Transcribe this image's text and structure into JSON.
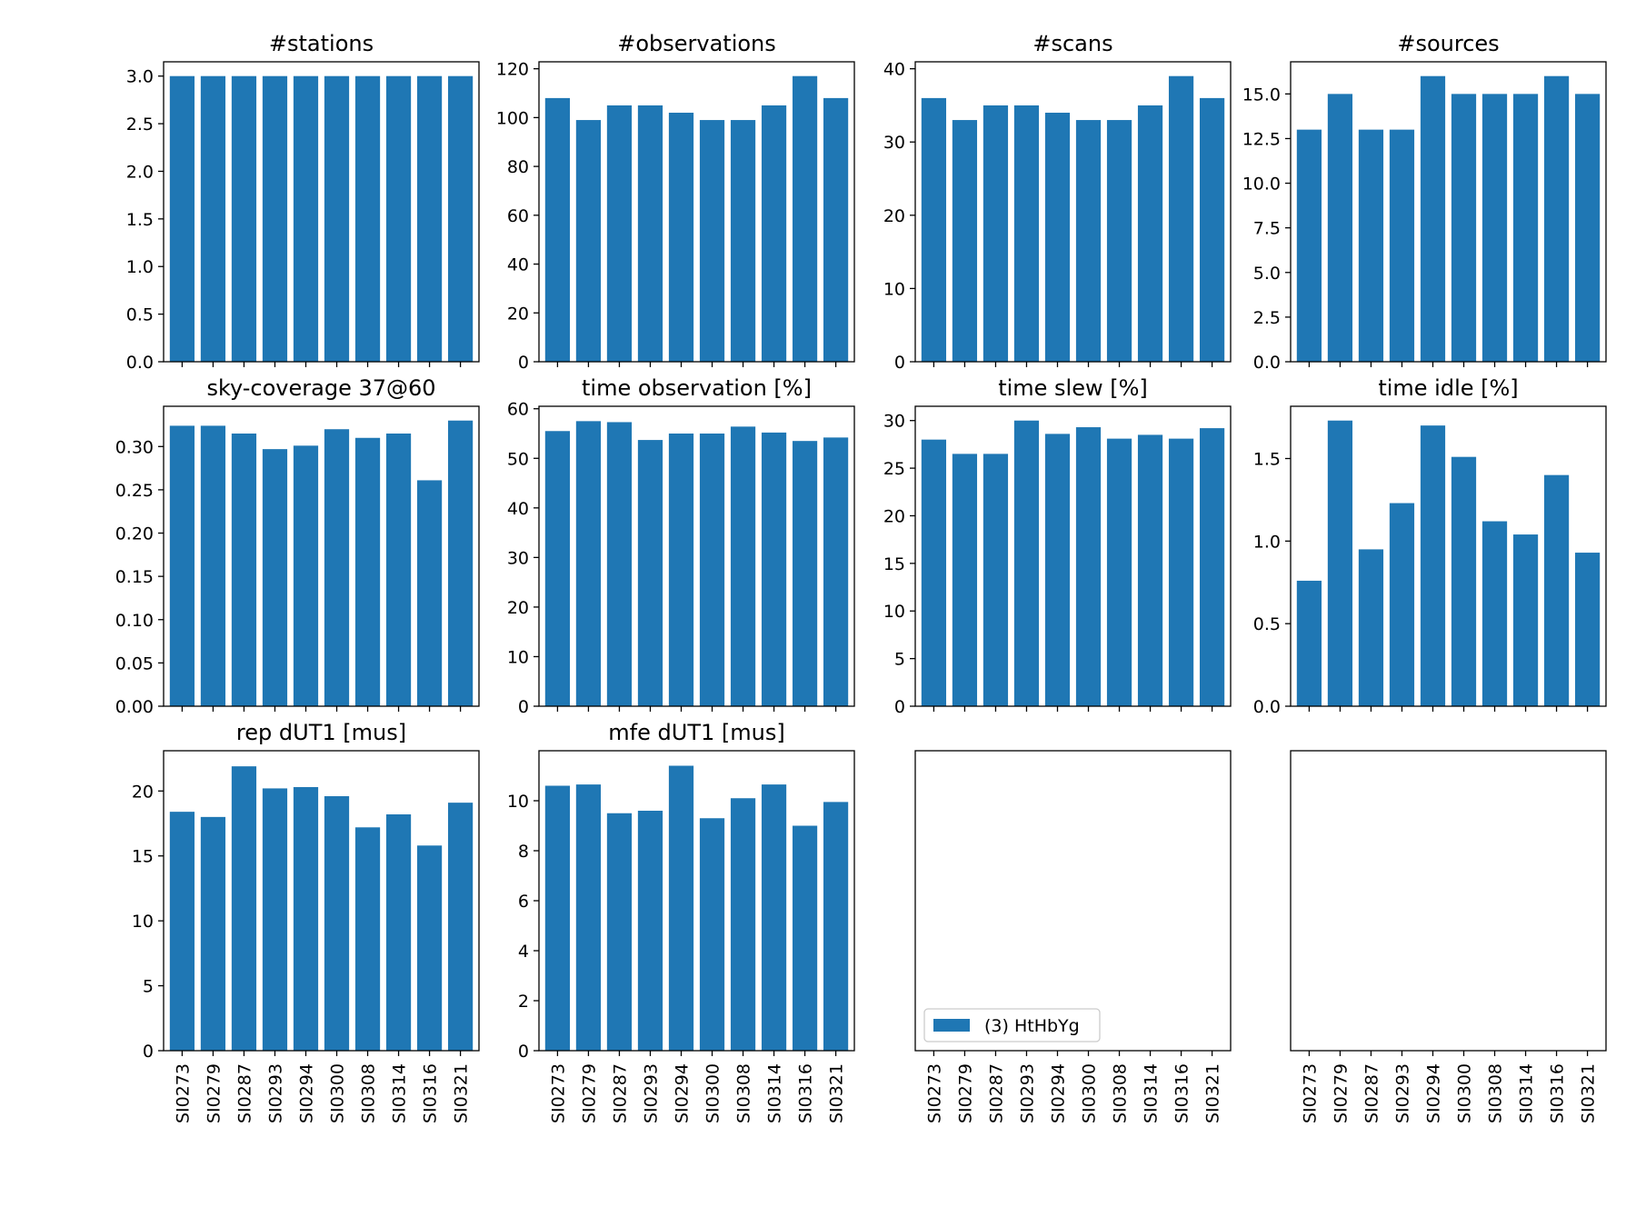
{
  "bar_color": "#1f77b4",
  "categories": [
    "SI0273",
    "SI0279",
    "SI0287",
    "SI0293",
    "SI0294",
    "SI0300",
    "SI0308",
    "SI0314",
    "SI0316",
    "SI0321"
  ],
  "legend": {
    "label": "(3) HtHbYg",
    "placement": "lower-left of third panel in last row"
  },
  "chart_data": [
    {
      "type": "bar",
      "title": "#stations",
      "ylim": [
        0,
        3.15
      ],
      "yticks": [
        "0.0",
        "0.5",
        "1.0",
        "1.5",
        "2.0",
        "2.5",
        "3.0"
      ],
      "ytick_values": [
        0,
        0.5,
        1,
        1.5,
        2,
        2.5,
        3
      ],
      "values": [
        3,
        3,
        3,
        3,
        3,
        3,
        3,
        3,
        3,
        3
      ]
    },
    {
      "type": "bar",
      "title": "#observations",
      "ylim": [
        0,
        122.85
      ],
      "yticks": [
        "0",
        "20",
        "40",
        "60",
        "80",
        "100",
        "120"
      ],
      "ytick_values": [
        0,
        20,
        40,
        60,
        80,
        100,
        120
      ],
      "values": [
        108,
        99,
        105,
        105,
        102,
        99,
        99,
        105,
        117,
        108
      ]
    },
    {
      "type": "bar",
      "title": "#scans",
      "ylim": [
        0,
        40.95
      ],
      "yticks": [
        "0",
        "10",
        "20",
        "30",
        "40"
      ],
      "ytick_values": [
        0,
        10,
        20,
        30,
        40
      ],
      "values": [
        36,
        33,
        35,
        35,
        34,
        33,
        33,
        35,
        39,
        36
      ]
    },
    {
      "type": "bar",
      "title": "#sources",
      "ylim": [
        0,
        16.8
      ],
      "yticks": [
        "0.0",
        "2.5",
        "5.0",
        "7.5",
        "10.0",
        "12.5",
        "15.0"
      ],
      "ytick_values": [
        0,
        2.5,
        5,
        7.5,
        10,
        12.5,
        15
      ],
      "values": [
        13,
        15,
        13,
        13,
        16,
        15,
        15,
        15,
        16,
        15
      ]
    },
    {
      "type": "bar",
      "title": "sky-coverage 37@60",
      "ylim": [
        0,
        0.3465
      ],
      "yticks": [
        "0.00",
        "0.05",
        "0.10",
        "0.15",
        "0.20",
        "0.25",
        "0.30"
      ],
      "ytick_values": [
        0,
        0.05,
        0.1,
        0.15,
        0.2,
        0.25,
        0.3
      ],
      "values": [
        0.324,
        0.324,
        0.315,
        0.297,
        0.301,
        0.32,
        0.31,
        0.315,
        0.261,
        0.33
      ]
    },
    {
      "type": "bar",
      "title": "time observation [%]",
      "ylim": [
        0,
        60.5
      ],
      "yticks": [
        "0",
        "10",
        "20",
        "30",
        "40",
        "50",
        "60"
      ],
      "ytick_values": [
        0,
        10,
        20,
        30,
        40,
        50,
        60
      ],
      "values": [
        55.5,
        57.5,
        57.3,
        53.7,
        55.0,
        55.0,
        56.4,
        55.2,
        53.5,
        54.2
      ]
    },
    {
      "type": "bar",
      "title": "time slew [%]",
      "ylim": [
        0,
        31.5
      ],
      "yticks": [
        "0",
        "5",
        "10",
        "15",
        "20",
        "25",
        "30"
      ],
      "ytick_values": [
        0,
        5,
        10,
        15,
        20,
        25,
        30
      ],
      "values": [
        28.0,
        26.5,
        26.5,
        30.0,
        28.6,
        29.3,
        28.1,
        28.5,
        28.1,
        29.2
      ]
    },
    {
      "type": "bar",
      "title": "time idle [%]",
      "ylim": [
        0,
        1.8165
      ],
      "yticks": [
        "0.0",
        "0.5",
        "1.0",
        "1.5"
      ],
      "ytick_values": [
        0,
        0.5,
        1,
        1.5
      ],
      "values": [
        0.76,
        1.73,
        0.95,
        1.23,
        1.7,
        1.51,
        1.12,
        1.04,
        1.4,
        0.93
      ]
    },
    {
      "type": "bar",
      "title": "rep dUT1 [mus]",
      "ylim": [
        0,
        23.1
      ],
      "yticks": [
        "0",
        "5",
        "10",
        "15",
        "20"
      ],
      "ytick_values": [
        0,
        5,
        10,
        15,
        20
      ],
      "values": [
        18.4,
        18.0,
        21.9,
        20.2,
        20.3,
        19.6,
        17.2,
        18.2,
        15.8,
        19.1
      ]
    },
    {
      "type": "bar",
      "title": "mfe dUT1 [mus]",
      "ylim": [
        0,
        12.0
      ],
      "yticks": [
        "0",
        "2",
        "4",
        "6",
        "8",
        "10"
      ],
      "ytick_values": [
        0,
        2,
        4,
        6,
        8,
        10
      ],
      "values": [
        10.6,
        10.65,
        9.5,
        9.6,
        11.4,
        9.3,
        10.1,
        10.65,
        9.0,
        9.95
      ]
    },
    {
      "type": "bar",
      "title": "",
      "ylim": [
        0,
        1
      ],
      "yticks": [],
      "ytick_values": [],
      "values": [],
      "legend": true
    },
    {
      "type": "bar",
      "title": "",
      "ylim": [
        0,
        1
      ],
      "yticks": [],
      "ytick_values": [],
      "values": []
    }
  ]
}
